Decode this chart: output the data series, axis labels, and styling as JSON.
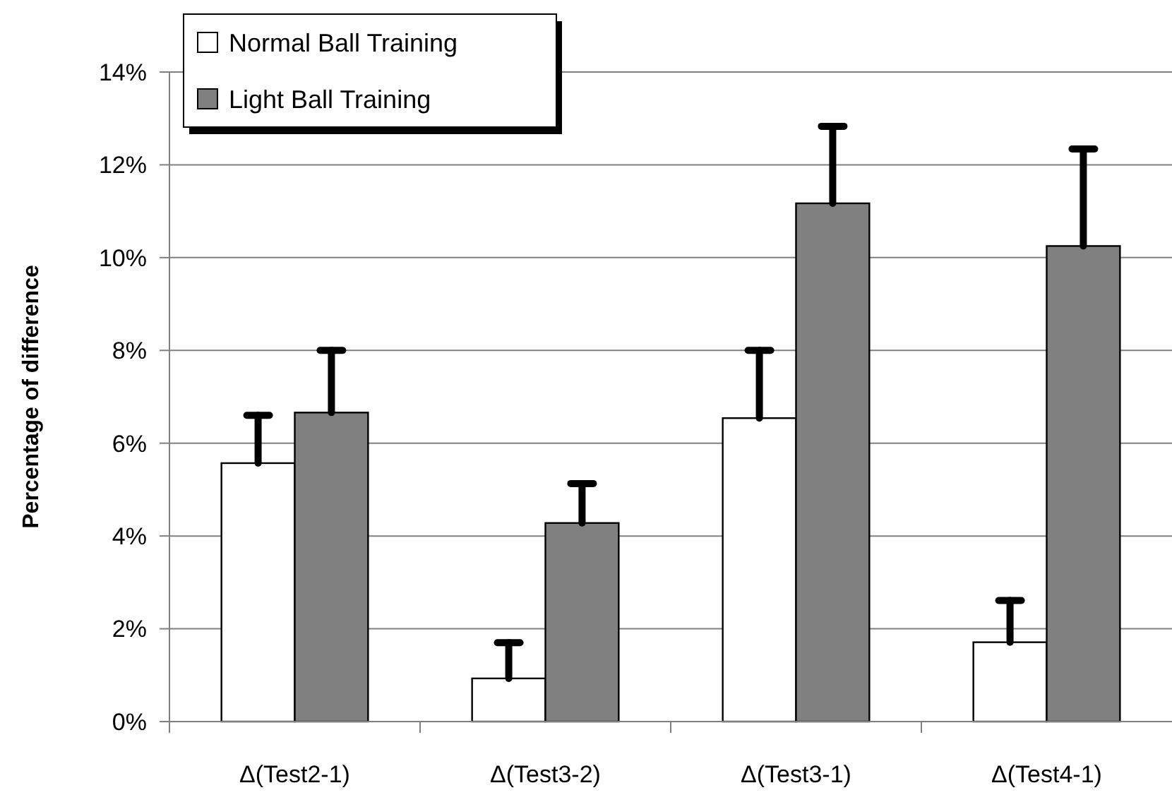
{
  "chart_data": {
    "type": "bar",
    "ylabel": "Percentage of difference",
    "categories": [
      "Δ(Test2-1)",
      "Δ(Test3-2)",
      "Δ(Test3-1)",
      "Δ(Test4-1)"
    ],
    "series": [
      {
        "name": "Normal Ball Training",
        "color": "#ffffff",
        "values": [
          5.57,
          0.93,
          6.54,
          1.71
        ],
        "errors": [
          [
            5.57,
            6.6
          ],
          [
            0.93,
            1.7
          ],
          [
            6.54,
            8.0
          ],
          [
            1.71,
            2.61
          ]
        ]
      },
      {
        "name": "Light Ball Training",
        "color": "#808080",
        "values": [
          6.66,
          4.28,
          11.17,
          10.25
        ],
        "errors": [
          [
            6.66,
            8.0
          ],
          [
            4.28,
            5.13
          ],
          [
            11.17,
            12.83
          ],
          [
            10.25,
            12.34
          ]
        ]
      }
    ],
    "ylim": [
      0,
      14
    ],
    "yticks": [
      {
        "value": 0,
        "label": "0%"
      },
      {
        "value": 2,
        "label": "2%"
      },
      {
        "value": 4,
        "label": "4%"
      },
      {
        "value": 6,
        "label": "6%"
      },
      {
        "value": 8,
        "label": "8%"
      },
      {
        "value": 10,
        "label": "10%"
      },
      {
        "value": 12,
        "label": "12%"
      },
      {
        "value": 14,
        "label": "14%"
      }
    ],
    "grid": "y",
    "legend": "top left"
  }
}
